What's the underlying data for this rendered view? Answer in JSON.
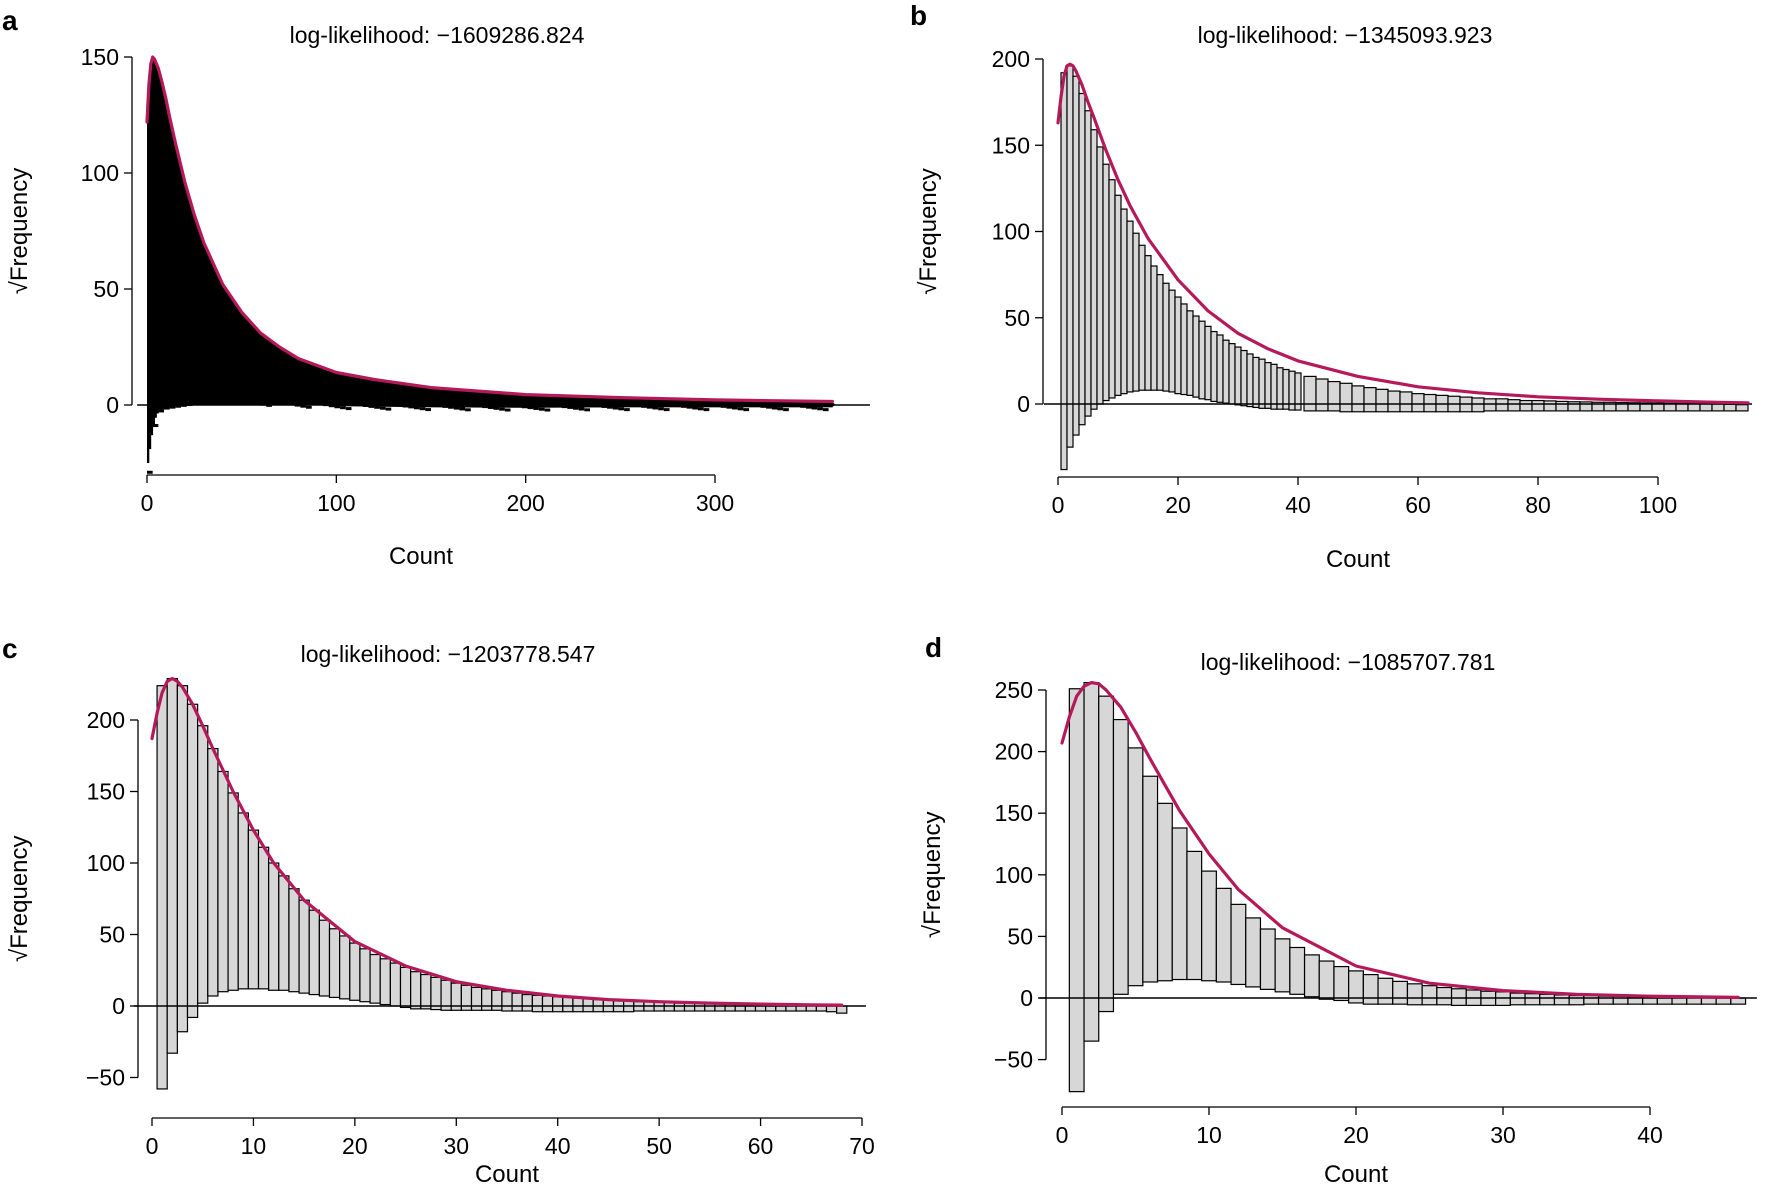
{
  "figure": {
    "panels": [
      "a",
      "b",
      "c",
      "d"
    ]
  },
  "chart_data": [
    {
      "panel": "a",
      "type": "bar",
      "title": "log-likelihood: −1609286.824",
      "xlabel": "Count",
      "ylabel": "√Frequency",
      "xlim": [
        0,
        362
      ],
      "ylim": [
        -30,
        150
      ],
      "xticks": [
        0,
        100,
        200,
        300
      ],
      "yticks": [
        0,
        50,
        100,
        150
      ],
      "dense_histogram": true,
      "fit_line": {
        "color": "#b5195a",
        "x": [
          0,
          1,
          2,
          3,
          4,
          6,
          8,
          10,
          12,
          15,
          20,
          25,
          30,
          40,
          50,
          60,
          70,
          80,
          100,
          120,
          150,
          200,
          250,
          300,
          362
        ],
        "y": [
          122,
          138,
          147,
          150,
          149,
          145,
          139,
          132,
          124,
          113,
          96,
          82,
          70,
          52,
          40,
          31,
          25,
          20,
          14,
          11,
          7.5,
          4.5,
          3.2,
          2.2,
          1.5
        ]
      },
      "lower_envelope": {
        "x": [
          0,
          3,
          5,
          8,
          12,
          16,
          20,
          25,
          30,
          35,
          40,
          50,
          70,
          100,
          150,
          200,
          250,
          300,
          362
        ],
        "y": [
          -28,
          -10,
          -4,
          -2,
          -1,
          0,
          1,
          2,
          2.5,
          2.5,
          2,
          1.5,
          0.5,
          -0.5,
          -1,
          -1.2,
          -1,
          -1,
          -1
        ]
      }
    },
    {
      "panel": "b",
      "type": "bar",
      "title": "log-likelihood: −1345093.923",
      "xlabel": "Count",
      "ylabel": "√Frequency",
      "xlim": [
        0,
        115
      ],
      "ylim": [
        -40,
        200
      ],
      "xticks": [
        0,
        20,
        40,
        60,
        80,
        100
      ],
      "yticks": [
        0,
        50,
        100,
        150,
        200
      ],
      "categories": [
        1,
        2,
        3,
        4,
        5,
        6,
        7,
        8,
        9,
        10,
        11,
        12,
        13,
        14,
        15,
        16,
        17,
        18,
        19,
        20,
        21,
        22,
        23,
        24,
        25,
        26,
        27,
        28,
        29,
        30,
        31,
        32,
        33,
        34,
        35,
        36,
        37,
        38,
        39,
        40,
        42,
        44,
        46,
        48,
        50,
        52,
        54,
        56,
        58,
        60,
        62,
        64,
        66,
        68,
        70,
        72,
        74,
        76,
        78,
        80,
        82,
        84,
        86,
        88,
        90,
        92,
        94,
        96,
        98,
        100,
        102,
        104,
        106,
        108,
        110,
        112,
        114
      ],
      "values": [
        192,
        196,
        190,
        180,
        170,
        159,
        149,
        139,
        130,
        121,
        113,
        106,
        99,
        92,
        86,
        80,
        75,
        70,
        66,
        62,
        58,
        54,
        51,
        48,
        45,
        42,
        40,
        37,
        35,
        33,
        31,
        29,
        27,
        26,
        24,
        23,
        21,
        20,
        19,
        18,
        16,
        14.5,
        13,
        12,
        10.5,
        9.5,
        8.5,
        7.5,
        7,
        6,
        5.5,
        5,
        4.5,
        4,
        3.5,
        3,
        3,
        2.5,
        2,
        2,
        1.8,
        1.5,
        1.3,
        1.2,
        1,
        1,
        0.8,
        0.7,
        0.6,
        0.5,
        0.4,
        0.3,
        0.2,
        0.1,
        0,
        -0.2,
        -0.4
      ],
      "base_values": [
        -38,
        -25,
        -18,
        -12,
        -7,
        -3,
        0,
        2,
        3.5,
        5,
        6,
        7,
        7.5,
        8,
        8,
        8,
        8,
        7.5,
        7,
        6,
        5.5,
        5,
        4,
        3,
        2.5,
        1.5,
        1,
        0.5,
        0,
        -0.5,
        -1,
        -1.5,
        -2,
        -2.5,
        -2.5,
        -3,
        -3,
        -3,
        -3.5,
        -3.5,
        -4,
        -4,
        -4,
        -4.5,
        -4.5,
        -4.5,
        -4.5,
        -4.5,
        -4.5,
        -4.5,
        -4.5,
        -4.5,
        -4.5,
        -4.5,
        -4.5,
        -4,
        -4,
        -4,
        -4,
        -4,
        -4,
        -4,
        -4,
        -4,
        -4,
        -4,
        -4,
        -4,
        -4,
        -4,
        -4,
        -4,
        -4,
        -4,
        -4,
        -4,
        -4
      ],
      "fit_line": {
        "color": "#b5195a",
        "x": [
          0,
          0.5,
          1,
          1.5,
          2,
          2.5,
          3,
          4,
          5,
          6,
          8,
          10,
          12,
          15,
          20,
          25,
          30,
          35,
          40,
          50,
          60,
          70,
          80,
          90,
          100,
          110,
          115
        ],
        "y": [
          163,
          178,
          190,
          196,
          197,
          196,
          193,
          185,
          175,
          166,
          147,
          130,
          115,
          96,
          72,
          54,
          41,
          32,
          25,
          16,
          10,
          6.5,
          4.2,
          2.8,
          1.8,
          1,
          0.7
        ]
      }
    },
    {
      "panel": "c",
      "type": "bar",
      "title": "log-likelihood: −1203778.547",
      "xlabel": "Count",
      "ylabel": "√Frequency",
      "xlim": [
        0,
        70
      ],
      "ylim": [
        -60,
        230
      ],
      "xticks": [
        0,
        10,
        20,
        30,
        40,
        50,
        60,
        70
      ],
      "yticks": [
        -50,
        0,
        50,
        100,
        150,
        200
      ],
      "categories": [
        1,
        2,
        3,
        4,
        5,
        6,
        7,
        8,
        9,
        10,
        11,
        12,
        13,
        14,
        15,
        16,
        17,
        18,
        19,
        20,
        21,
        22,
        23,
        24,
        25,
        26,
        27,
        28,
        29,
        30,
        31,
        32,
        33,
        34,
        35,
        36,
        37,
        38,
        39,
        40,
        41,
        42,
        43,
        44,
        45,
        46,
        47,
        48,
        49,
        50,
        51,
        52,
        53,
        54,
        55,
        56,
        57,
        58,
        59,
        60,
        61,
        62,
        63,
        64,
        65,
        66,
        67,
        68
      ],
      "values": [
        224,
        229,
        224,
        211,
        196,
        180,
        164,
        149,
        135,
        123,
        111,
        100,
        91,
        82,
        74,
        67,
        60,
        54,
        49,
        44,
        40,
        36,
        33,
        30,
        27,
        24,
        22,
        20,
        18,
        16,
        14.5,
        13,
        12,
        11,
        10,
        9,
        8,
        7.5,
        7,
        6.5,
        6,
        5.5,
        5,
        4.5,
        4,
        3.5,
        3.5,
        3,
        3,
        2.5,
        2.5,
        2,
        2,
        2,
        1.5,
        1.5,
        1.5,
        1,
        1,
        1,
        1,
        0.5,
        0.5,
        0.5,
        0.5,
        0,
        0,
        0
      ],
      "base_values": [
        -58,
        -33,
        -18,
        -8,
        2,
        7,
        10,
        11,
        12,
        12,
        12,
        11,
        11,
        10,
        9,
        8,
        7,
        6,
        5,
        4,
        3,
        2,
        1,
        0,
        -1,
        -2,
        -2,
        -2.5,
        -3,
        -3,
        -3,
        -3,
        -3,
        -3,
        -3.5,
        -3.5,
        -3.5,
        -4,
        -4,
        -4,
        -4,
        -4,
        -4,
        -4,
        -4,
        -4,
        -4,
        -3.5,
        -3.5,
        -3.5,
        -3.5,
        -3.5,
        -3.5,
        -3.5,
        -3.5,
        -3.5,
        -3.5,
        -3.5,
        -3.5,
        -3.5,
        -3.5,
        -3.5,
        -3.5,
        -3.5,
        -3.5,
        -3.5,
        -4,
        -5
      ],
      "fit_line": {
        "color": "#b5195a",
        "x": [
          0,
          0.5,
          1,
          1.5,
          2,
          2.5,
          3,
          4,
          5,
          6,
          8,
          10,
          12,
          15,
          20,
          25,
          30,
          35,
          40,
          45,
          50,
          55,
          60,
          65,
          68
        ],
        "y": [
          187,
          205,
          219,
          227,
          229,
          227,
          223,
          211,
          196,
          180,
          150,
          123,
          100,
          74,
          45,
          28,
          17,
          11,
          7,
          4.5,
          3,
          2,
          1.3,
          0.8,
          0.6
        ]
      }
    },
    {
      "panel": "d",
      "type": "bar",
      "title": "log-likelihood: −1085707.781",
      "xlabel": "Count",
      "ylabel": "√Frequency",
      "xlim": [
        0,
        47
      ],
      "ylim": [
        -75,
        255
      ],
      "xticks": [
        0,
        10,
        20,
        30,
        40
      ],
      "yticks": [
        -50,
        0,
        50,
        100,
        150,
        200,
        250
      ],
      "categories": [
        1,
        2,
        3,
        4,
        5,
        6,
        7,
        8,
        9,
        10,
        11,
        12,
        13,
        14,
        15,
        16,
        17,
        18,
        19,
        20,
        21,
        22,
        23,
        24,
        25,
        26,
        27,
        28,
        29,
        30,
        31,
        32,
        33,
        34,
        35,
        36,
        37,
        38,
        39,
        40,
        41,
        42,
        43,
        44,
        45,
        46
      ],
      "values": [
        251,
        256,
        245,
        226,
        203,
        180,
        158,
        138,
        119,
        103,
        89,
        76,
        65,
        56,
        48,
        41,
        35,
        30,
        25.5,
        22,
        19,
        16,
        13.5,
        11.5,
        10,
        8.5,
        7.5,
        6.5,
        5.5,
        5,
        4,
        3.5,
        3,
        2.5,
        2,
        2,
        1.5,
        1.5,
        1,
        1,
        1,
        0.5,
        0.5,
        0.5,
        0,
        0
      ],
      "base_values": [
        -76,
        -35,
        -11,
        3,
        10,
        13,
        14,
        15,
        15,
        14,
        13,
        11,
        9,
        7,
        5,
        3,
        1,
        -1,
        -2,
        -4,
        -5,
        -5,
        -5,
        -5.5,
        -5.5,
        -5.5,
        -6,
        -6,
        -6,
        -6,
        -5.5,
        -5.5,
        -5.5,
        -5.5,
        -5.5,
        -5,
        -5,
        -5,
        -5,
        -5,
        -5,
        -5,
        -5,
        -5,
        -5,
        -5
      ],
      "fit_line": {
        "color": "#b5195a",
        "x": [
          0,
          0.5,
          1,
          1.5,
          2,
          2.5,
          3,
          4,
          5,
          6,
          7,
          8,
          10,
          12,
          15,
          20,
          25,
          30,
          35,
          40,
          46
        ],
        "y": [
          207,
          228,
          245,
          253,
          256,
          255,
          250,
          236,
          216,
          194,
          173,
          152,
          117,
          88,
          57,
          26,
          12,
          6,
          3,
          1.5,
          0.5
        ]
      }
    }
  ]
}
